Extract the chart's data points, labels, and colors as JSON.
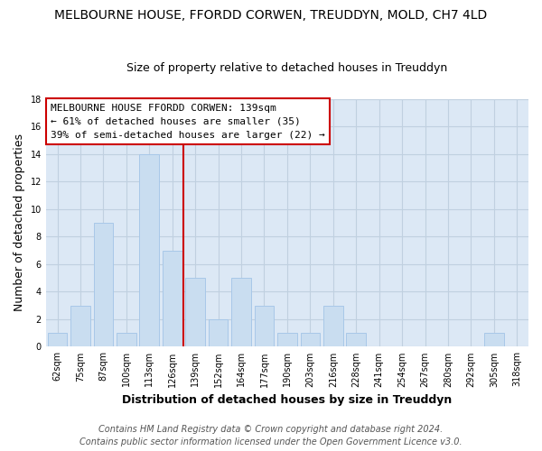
{
  "title": "MELBOURNE HOUSE, FFORDD CORWEN, TREUDDYN, MOLD, CH7 4LD",
  "subtitle": "Size of property relative to detached houses in Treuddyn",
  "xlabel": "Distribution of detached houses by size in Treuddyn",
  "ylabel": "Number of detached properties",
  "bar_labels": [
    "62sqm",
    "75sqm",
    "87sqm",
    "100sqm",
    "113sqm",
    "126sqm",
    "139sqm",
    "152sqm",
    "164sqm",
    "177sqm",
    "190sqm",
    "203sqm",
    "216sqm",
    "228sqm",
    "241sqm",
    "254sqm",
    "267sqm",
    "280sqm",
    "292sqm",
    "305sqm",
    "318sqm"
  ],
  "bar_values": [
    1,
    3,
    9,
    1,
    14,
    7,
    5,
    2,
    5,
    3,
    1,
    1,
    3,
    1,
    0,
    0,
    0,
    0,
    0,
    1,
    0
  ],
  "bar_color": "#c9ddf0",
  "bar_edge_color": "#a8c8e8",
  "vline_position": 6.5,
  "vline_color": "#cc0000",
  "ylim": [
    0,
    18
  ],
  "yticks": [
    0,
    2,
    4,
    6,
    8,
    10,
    12,
    14,
    16,
    18
  ],
  "annotation_title": "MELBOURNE HOUSE FFORDD CORWEN: 139sqm",
  "annotation_line1": "← 61% of detached houses are smaller (35)",
  "annotation_line2": "39% of semi-detached houses are larger (22) →",
  "footer1": "Contains HM Land Registry data © Crown copyright and database right 2024.",
  "footer2": "Contains public sector information licensed under the Open Government Licence v3.0.",
  "fig_bg_color": "#ffffff",
  "plot_bg_color": "#dce8f5",
  "grid_color": "#c0d0e0",
  "title_fontsize": 10,
  "subtitle_fontsize": 9,
  "axis_label_fontsize": 9,
  "tick_fontsize": 7,
  "footer_fontsize": 7,
  "annotation_fontsize": 8
}
